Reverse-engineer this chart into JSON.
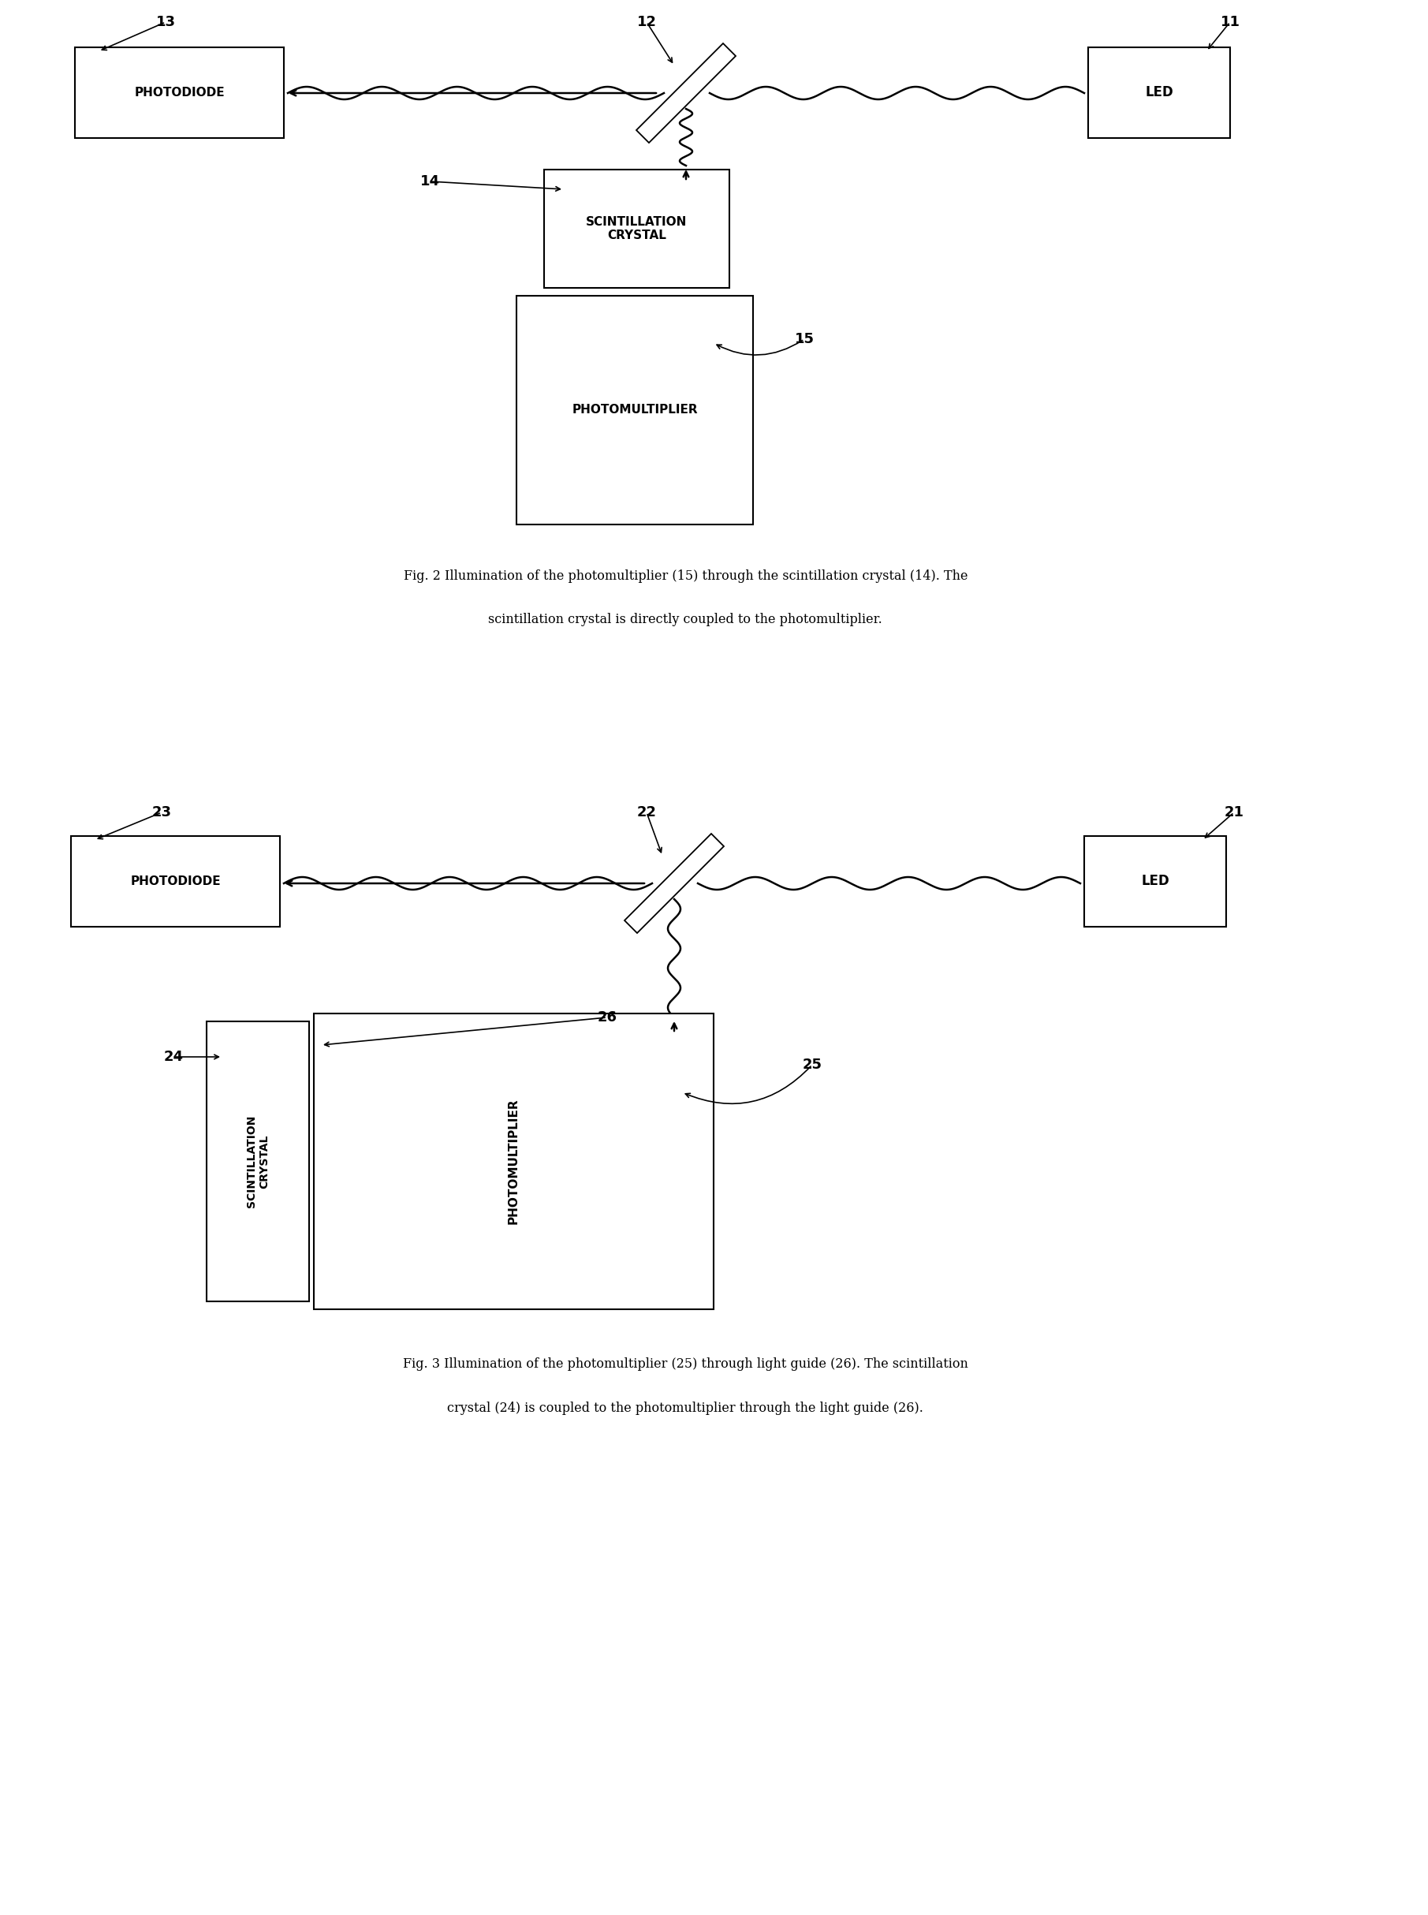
{
  "fig_width": 18.11,
  "fig_height": 24.28,
  "bg_color": "#ffffff",
  "caption2_line1": "Fig. 2 Illumination of the photomultiplier (15) through the scintillation crystal (14). The",
  "caption2_line2": "scintillation crystal is directly coupled to the photomultiplier.",
  "caption3_line1": "Fig. 3 Illumination of the photomultiplier (25) through light guide (26). The scintillation",
  "caption3_line2": "crystal (24) is coupled to the photomultiplier through the light guide (26)."
}
